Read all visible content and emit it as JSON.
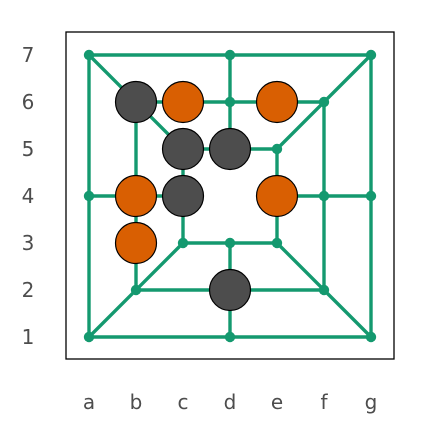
{
  "game": "Nine Men's Morris",
  "colors": {
    "board_line": "#14996f",
    "frame": "#000000",
    "orange": "#d95f02",
    "dark": "#4d4d4d",
    "background": "#ffffff",
    "label": "#4d4d4d"
  },
  "files": [
    "a",
    "b",
    "c",
    "d",
    "e",
    "f",
    "g"
  ],
  "ranks": [
    "1",
    "2",
    "3",
    "4",
    "5",
    "6",
    "7"
  ],
  "board_points": [
    "a1",
    "d1",
    "g1",
    "b2",
    "d2",
    "f2",
    "c3",
    "d3",
    "e3",
    "a4",
    "b4",
    "c4",
    "e4",
    "f4",
    "g4",
    "c5",
    "d5",
    "e5",
    "b6",
    "d6",
    "f6",
    "a7",
    "d7",
    "g7"
  ],
  "board_lines": [
    [
      "a1",
      "g1"
    ],
    [
      "b2",
      "f2"
    ],
    [
      "c3",
      "e3"
    ],
    [
      "a4",
      "c4"
    ],
    [
      "e4",
      "g4"
    ],
    [
      "c5",
      "e5"
    ],
    [
      "b6",
      "f6"
    ],
    [
      "a7",
      "g7"
    ],
    [
      "a1",
      "a7"
    ],
    [
      "b2",
      "b6"
    ],
    [
      "c3",
      "c5"
    ],
    [
      "d1",
      "d3"
    ],
    [
      "d5",
      "d7"
    ],
    [
      "e3",
      "e5"
    ],
    [
      "f2",
      "f6"
    ],
    [
      "g1",
      "g7"
    ],
    [
      "a1",
      "c3"
    ],
    [
      "g1",
      "e3"
    ],
    [
      "a7",
      "c5"
    ],
    [
      "g7",
      "e5"
    ]
  ],
  "pieces": [
    {
      "square": "b6",
      "color": "dark"
    },
    {
      "square": "c6",
      "color": "orange"
    },
    {
      "square": "e6",
      "color": "orange"
    },
    {
      "square": "c5",
      "color": "dark"
    },
    {
      "square": "d5",
      "color": "dark"
    },
    {
      "square": "b4",
      "color": "orange"
    },
    {
      "square": "c4",
      "color": "dark"
    },
    {
      "square": "e4",
      "color": "orange"
    },
    {
      "square": "b3",
      "color": "orange"
    },
    {
      "square": "d2",
      "color": "dark"
    }
  ]
}
